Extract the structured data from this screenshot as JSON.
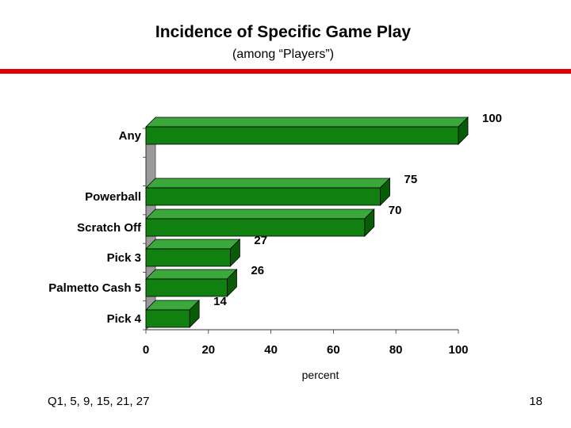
{
  "slide": {
    "title": "Incidence of Specific Game Play",
    "subtitle": "(among “Players”)",
    "footnote": "Q1, 5, 9, 15, 21, 27",
    "page_number": "18"
  },
  "colors": {
    "accent_rule": "#e00000",
    "bar_front": "#108010",
    "bar_top": "#3aa83a",
    "bar_side": "#085c08",
    "wall": "#9a9a9a"
  },
  "chart_data": {
    "type": "bar",
    "orientation": "horizontal",
    "categories": [
      "Any",
      "Powerball",
      "Scratch Off",
      "Pick 3",
      "Palmetto Cash 5",
      "Pick 4"
    ],
    "values": [
      100,
      75,
      70,
      27,
      26,
      14
    ],
    "data_labels": [
      "100",
      "75",
      "70",
      "27",
      "26",
      "14"
    ],
    "xlabel": "percent",
    "ylabel": "",
    "xlim": [
      0,
      100
    ],
    "xticks": [
      "0",
      "20",
      "40",
      "60",
      "80",
      "100"
    ],
    "grid": false,
    "legend": "none",
    "style": "3d"
  }
}
